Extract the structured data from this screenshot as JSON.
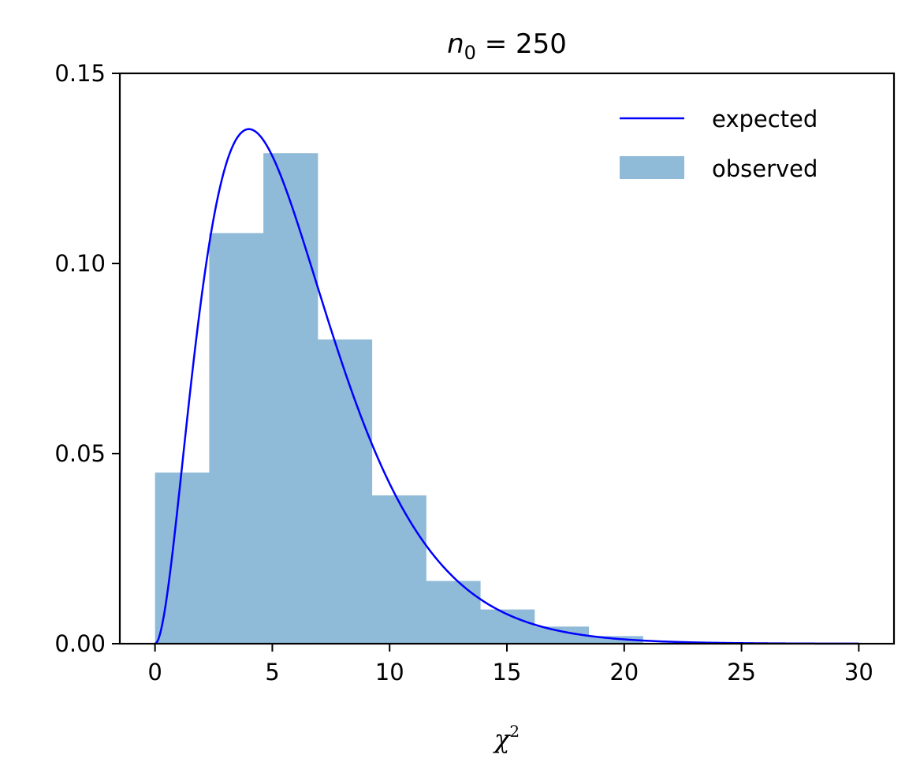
{
  "chart_data": {
    "type": "histogram",
    "title": {
      "base": "n",
      "subscript": "0",
      "rest": " = 250"
    },
    "xlabel": {
      "base": "χ",
      "superscript": "2"
    },
    "ylabel": "",
    "xlim": [
      -1.5,
      31.5
    ],
    "ylim": [
      0,
      0.15
    ],
    "xticks": [
      0,
      5,
      10,
      15,
      20,
      25,
      30
    ],
    "xtick_labels": [
      "0",
      "5",
      "10",
      "15",
      "20",
      "25",
      "30"
    ],
    "yticks": [
      0.0,
      0.05,
      0.1,
      0.15
    ],
    "ytick_labels": [
      "0.00",
      "0.05",
      "0.10",
      "0.15"
    ],
    "grid": false,
    "legend_position": "top-right",
    "series": [
      {
        "name": "observed",
        "type": "bar",
        "color": "#8fbad8",
        "bin_edges": [
          0,
          2.31,
          4.62,
          6.93,
          9.24,
          11.55,
          13.86,
          16.17,
          18.48,
          20.79
        ],
        "values": [
          0.045,
          0.108,
          0.129,
          0.08,
          0.039,
          0.0165,
          0.009,
          0.0045,
          0.002
        ]
      },
      {
        "name": "expected",
        "type": "line",
        "color": "#0000ff",
        "distribution": "chi-squared",
        "dof": 6,
        "x_range": [
          0,
          30
        ]
      }
    ]
  }
}
